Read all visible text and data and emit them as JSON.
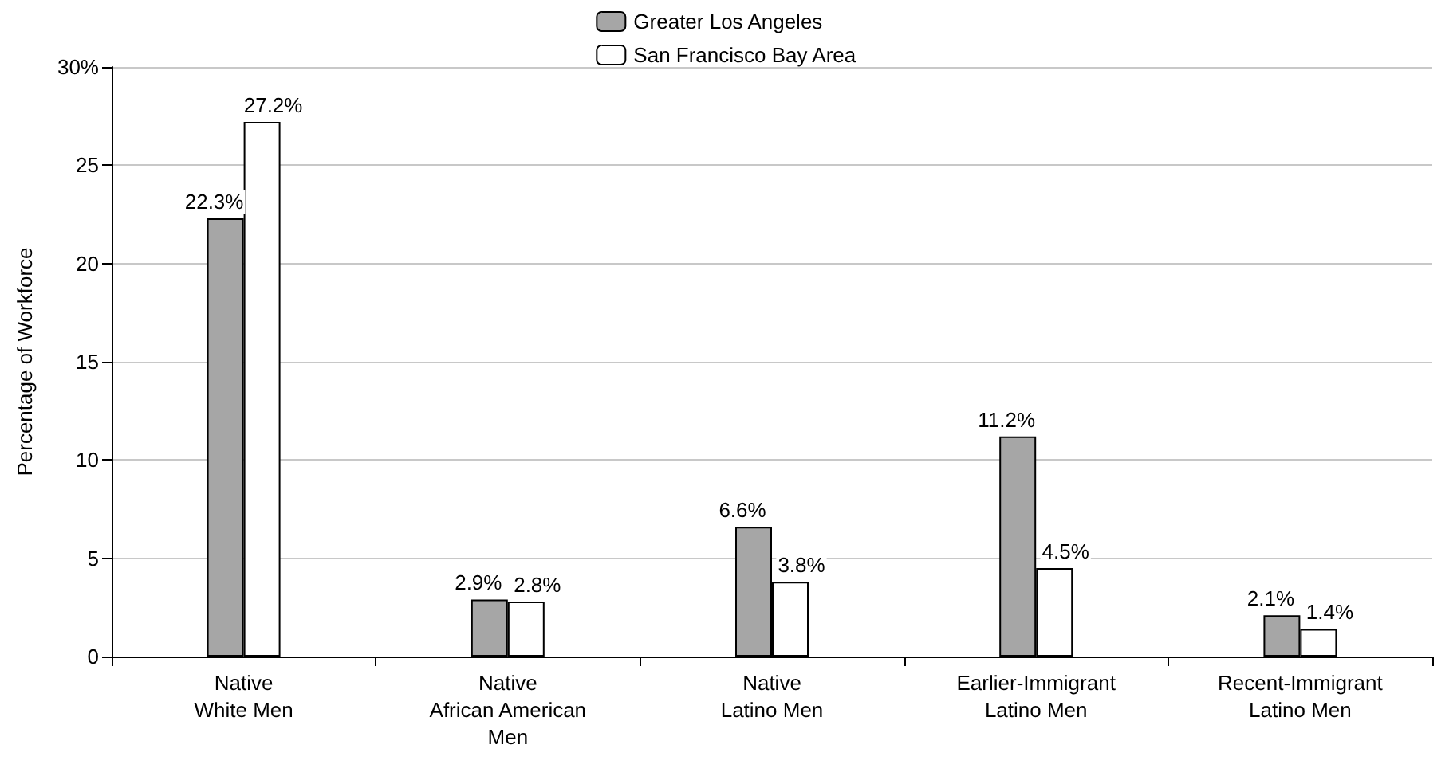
{
  "chart_data": {
    "type": "bar",
    "ylabel": "Percentage of Workforce",
    "categories": [
      "Native\nWhite Men",
      "Native\nAfrican American\nMen",
      "Native\nLatino Men",
      "Earlier-Immigrant\nLatino Men",
      "Recent-Immigrant\nLatino Men"
    ],
    "series": [
      {
        "name": "Greater Los Angeles",
        "color": "#a6a6a6",
        "values": [
          22.3,
          2.9,
          6.6,
          11.2,
          2.1
        ],
        "value_labels": [
          "22.3%",
          "2.9%",
          "6.6%",
          "11.2%",
          "2.1%"
        ]
      },
      {
        "name": "San Francisco Bay Area",
        "color": "#ffffff",
        "values": [
          27.2,
          2.8,
          3.8,
          4.5,
          1.4
        ],
        "value_labels": [
          "27.2%",
          "2.8%",
          "3.8%",
          "4.5%",
          "1.4%"
        ]
      }
    ],
    "ylim": [
      0,
      30
    ],
    "yticks": [
      0,
      5,
      10,
      15,
      20,
      25,
      {
        "value": 30,
        "label": "30%"
      }
    ],
    "grid": "y",
    "legend": "top"
  }
}
